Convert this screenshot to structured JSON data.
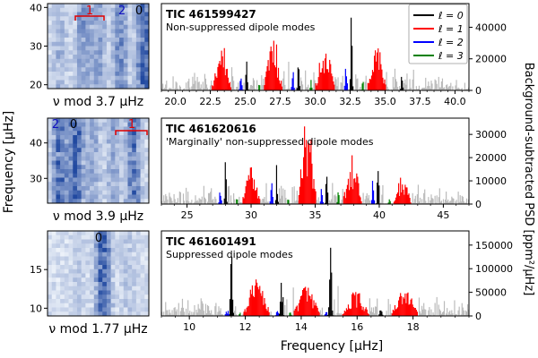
{
  "axes": {
    "x_label": "Frequency [μHz]",
    "y_label_left": "Frequency [μHz]",
    "y_label_right": "Background-subtracted PSD [ppm²/μHz]"
  },
  "legend": {
    "entries": [
      {
        "label": "ℓ = 0",
        "color": "#000000"
      },
      {
        "label": "ℓ = 1",
        "color": "#ff0000"
      },
      {
        "label": "ℓ = 2",
        "color": "#0000ff"
      },
      {
        "label": "ℓ = 3",
        "color": "#008000"
      }
    ]
  },
  "colors": {
    "gray": "#bbbbbb",
    "l0": "#000000",
    "l1": "#ff0000",
    "l2": "#0000ff",
    "l3": "#008000"
  },
  "chart_data": [
    {
      "type": "heatmap",
      "xlabel": "ν mod 3.7 μHz",
      "ylim": [
        19,
        41
      ],
      "yticks": [
        20,
        30,
        40
      ],
      "annotations": [
        "1",
        "2",
        "0"
      ]
    },
    {
      "type": "heatmap",
      "xlabel": "ν mod 3.9 μHz",
      "ylim": [
        23,
        47
      ],
      "yticks": [
        30,
        40
      ],
      "annotations": [
        "2",
        "0",
        "1"
      ]
    },
    {
      "type": "heatmap",
      "xlabel": "ν mod 1.77 μHz",
      "ylim": [
        9,
        20
      ],
      "yticks": [
        10,
        15
      ],
      "annotations": [
        "0"
      ]
    },
    {
      "type": "bar",
      "title": "TIC 461599427",
      "subtitle": "Non-suppressed dipole modes",
      "xlim": [
        19,
        41
      ],
      "ylim": [
        0,
        55000
      ],
      "xticks": [
        20.0,
        22.5,
        25.0,
        27.5,
        30.0,
        32.5,
        35.0,
        37.5,
        40.0
      ],
      "yticks": [
        0,
        20000,
        40000
      ],
      "spacing": 3.7,
      "modes": [
        {
          "l": 0,
          "freq": 25.1,
          "amp": 22000
        },
        {
          "l": 0,
          "freq": 28.8,
          "amp": 20000
        },
        {
          "l": 0,
          "freq": 32.6,
          "amp": 52000
        },
        {
          "l": 0,
          "freq": 36.2,
          "amp": 14000
        },
        {
          "l": 1,
          "freq": 23.3,
          "amp": 26000
        },
        {
          "l": 1,
          "freq": 27.0,
          "amp": 30000
        },
        {
          "l": 1,
          "freq": 30.7,
          "amp": 28000
        },
        {
          "l": 1,
          "freq": 34.4,
          "amp": 26000
        },
        {
          "l": 2,
          "freq": 24.7,
          "amp": 12000
        },
        {
          "l": 2,
          "freq": 28.4,
          "amp": 14000
        },
        {
          "l": 2,
          "freq": 32.2,
          "amp": 20000
        },
        {
          "l": 3,
          "freq": 26.0,
          "amp": 6000
        },
        {
          "l": 3,
          "freq": 29.7,
          "amp": 7000
        },
        {
          "l": 3,
          "freq": 33.4,
          "amp": 6000
        }
      ]
    },
    {
      "type": "bar",
      "title": "TIC 461620616",
      "subtitle": "'Marginally' non-suppressed dipole modes",
      "xlim": [
        23,
        47
      ],
      "ylim": [
        0,
        37000
      ],
      "xticks": [
        25,
        30,
        35,
        40,
        45
      ],
      "yticks": [
        0,
        10000,
        20000,
        30000
      ],
      "spacing": 3.9,
      "modes": [
        {
          "l": 0,
          "freq": 28.0,
          "amp": 20000
        },
        {
          "l": 0,
          "freq": 32.0,
          "amp": 20000
        },
        {
          "l": 0,
          "freq": 35.9,
          "amp": 28000
        },
        {
          "l": 0,
          "freq": 39.9,
          "amp": 28000
        },
        {
          "l": 1,
          "freq": 30.0,
          "amp": 16000
        },
        {
          "l": 1,
          "freq": 34.4,
          "amp": 34000
        },
        {
          "l": 1,
          "freq": 37.9,
          "amp": 18000
        },
        {
          "l": 1,
          "freq": 41.8,
          "amp": 10000
        },
        {
          "l": 2,
          "freq": 27.6,
          "amp": 10000
        },
        {
          "l": 2,
          "freq": 31.6,
          "amp": 10000
        },
        {
          "l": 2,
          "freq": 35.5,
          "amp": 10000
        },
        {
          "l": 2,
          "freq": 39.5,
          "amp": 11000
        },
        {
          "l": 3,
          "freq": 28.9,
          "amp": 5000
        },
        {
          "l": 3,
          "freq": 32.9,
          "amp": 5000
        },
        {
          "l": 3,
          "freq": 36.8,
          "amp": 7000
        },
        {
          "l": 3,
          "freq": 40.8,
          "amp": 5000
        }
      ]
    },
    {
      "type": "bar",
      "title": "TIC 461601491",
      "subtitle": "Suppressed dipole modes",
      "xlim": [
        9,
        20
      ],
      "ylim": [
        0,
        180000
      ],
      "xticks": [
        10,
        12,
        14,
        16,
        18
      ],
      "yticks": [
        0,
        50000,
        100000,
        150000
      ],
      "spacing": 1.77,
      "modes": [
        {
          "l": 0,
          "freq": 11.5,
          "amp": 115000
        },
        {
          "l": 0,
          "freq": 13.3,
          "amp": 95000
        },
        {
          "l": 0,
          "freq": 15.05,
          "amp": 160000
        },
        {
          "l": 0,
          "freq": 16.85,
          "amp": 30000
        },
        {
          "l": 1,
          "freq": 12.4,
          "amp": 65000
        },
        {
          "l": 1,
          "freq": 14.2,
          "amp": 55000
        },
        {
          "l": 1,
          "freq": 15.95,
          "amp": 45000
        },
        {
          "l": 1,
          "freq": 17.7,
          "amp": 50000
        },
        {
          "l": 2,
          "freq": 11.35,
          "amp": 12000
        },
        {
          "l": 2,
          "freq": 13.15,
          "amp": 10000
        },
        {
          "l": 2,
          "freq": 14.9,
          "amp": 10000
        },
        {
          "l": 3,
          "freq": 11.8,
          "amp": 8000
        },
        {
          "l": 3,
          "freq": 13.6,
          "amp": 7000
        }
      ]
    }
  ]
}
